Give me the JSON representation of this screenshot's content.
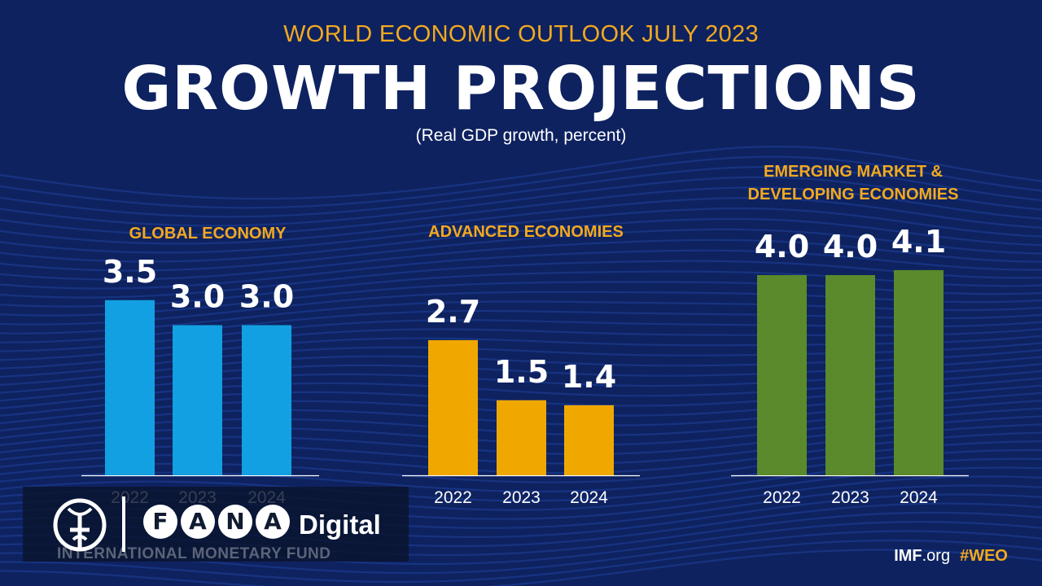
{
  "header": {
    "supertitle": "WORLD ECONOMIC OUTLOOK JULY 2023",
    "title": "GROWTH PROJECTIONS",
    "subtitle": "(Real GDP growth, percent)"
  },
  "colors": {
    "background": "#0e2260",
    "accent": "#f2a91f",
    "global": "#13a0e2",
    "advanced": "#f0a800",
    "emerging": "#5a8a2b"
  },
  "chart_data": [
    {
      "type": "bar",
      "title": "GLOBAL ECONOMY",
      "categories": [
        "2022",
        "2023",
        "2024"
      ],
      "values": [
        3.5,
        3.0,
        3.0
      ],
      "value_labels": [
        "3.5",
        "3.0",
        "3.0"
      ],
      "color": "#13a0e2"
    },
    {
      "type": "bar",
      "title": "ADVANCED ECONOMIES",
      "categories": [
        "2022",
        "2023",
        "2024"
      ],
      "values": [
        2.7,
        1.5,
        1.4
      ],
      "value_labels": [
        "2.7",
        "1.5",
        "1.4"
      ],
      "color": "#f0a800"
    },
    {
      "type": "bar",
      "title_lines": [
        "EMERGING MARKET &",
        "DEVELOPING ECONOMIES"
      ],
      "categories": [
        "2022",
        "2023",
        "2024"
      ],
      "values": [
        4.0,
        4.0,
        4.1
      ],
      "value_labels": [
        "4.0",
        "4.0",
        "4.1"
      ],
      "color": "#5a8a2b"
    }
  ],
  "watermark": {
    "letters": [
      "F",
      "A",
      "N",
      "A"
    ],
    "suffix": "Digital",
    "org": "INTERNATIONAL MONETARY FUND"
  },
  "footer": {
    "site_bold": "IMF",
    "site_rest": ".org",
    "hashtag": "#WEO"
  }
}
